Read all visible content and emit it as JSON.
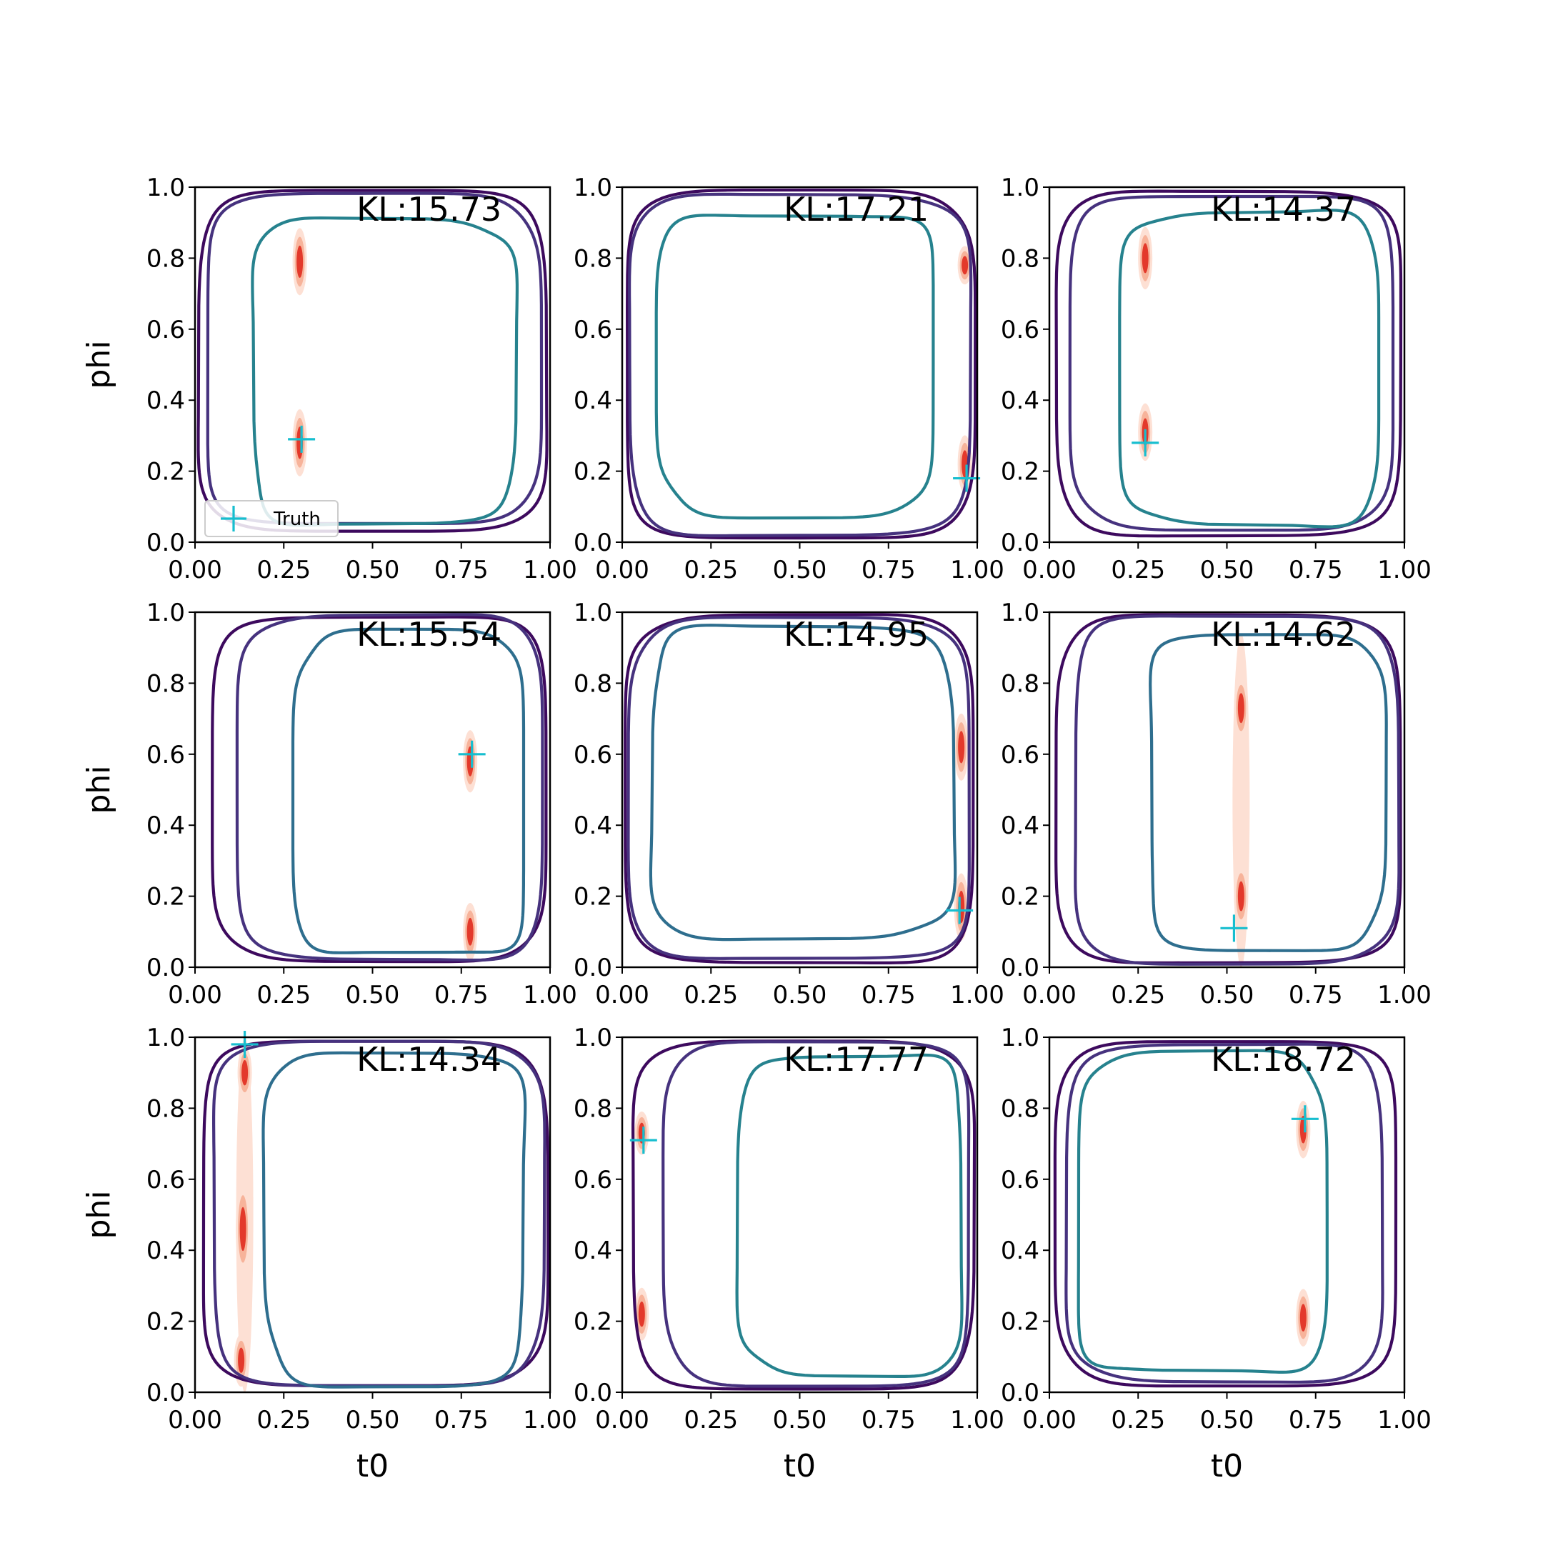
{
  "chart_data": {
    "type": "contour-grid",
    "rows": 3,
    "cols": 3,
    "xlabel": "t0",
    "ylabel": "phi",
    "xlim": [
      0,
      1
    ],
    "ylim": [
      0,
      1
    ],
    "xticks": [
      "0.00",
      "0.25",
      "0.50",
      "0.75",
      "1.00"
    ],
    "yticks": [
      "0.0",
      "0.2",
      "0.4",
      "0.6",
      "0.8",
      "1.0"
    ],
    "legend": {
      "label": "Truth",
      "placement": "lower-left",
      "panel": 0
    },
    "colors": {
      "truth": "#17becf",
      "density_dark": "#e3392b",
      "density_mid": "#f7b39a",
      "density_light": "#fde0d4",
      "contour_outer": "#3d0a5e",
      "contour_middle": "#46327e",
      "contour_inner_a": "#26828e",
      "contour_inner_b": "#2e6e8e"
    },
    "panels": [
      {
        "kl": "KL:15.73",
        "truth": [
          0.3,
          0.29
        ],
        "peaks": [
          [
            0.295,
            0.28,
            0.14
          ],
          [
            0.295,
            0.79,
            0.14
          ]
        ],
        "band": null,
        "outer": [
          0.01,
          0.03,
          0.99,
          0.99
        ],
        "middle": [
          0.03,
          0.05,
          0.97,
          0.98
        ],
        "inner": [
          0.16,
          0.05,
          0.9,
          0.91
        ],
        "inner_color": "contour_inner_a"
      },
      {
        "kl": "KL:17.21",
        "truth": [
          0.97,
          0.18
        ],
        "peaks": [
          [
            0.965,
            0.22,
            0.12
          ],
          [
            0.965,
            0.78,
            0.08
          ]
        ],
        "band": null,
        "outer": [
          0.01,
          0.01,
          0.99,
          0.99
        ],
        "middle": [
          0.02,
          0.02,
          0.98,
          0.98
        ],
        "inner": [
          0.1,
          0.08,
          0.88,
          0.93
        ],
        "inner_color": "contour_inner_a"
      },
      {
        "kl": "KL:14.37",
        "truth": [
          0.27,
          0.28
        ],
        "peaks": [
          [
            0.27,
            0.31,
            0.12
          ],
          [
            0.27,
            0.8,
            0.13
          ]
        ],
        "band": null,
        "outer": [
          0.02,
          0.02,
          0.99,
          0.99
        ],
        "middle": [
          0.06,
          0.04,
          0.97,
          0.98
        ],
        "inner": [
          0.2,
          0.05,
          0.93,
          0.93
        ],
        "inner_color": "contour_inner_a"
      },
      {
        "kl": "KL:15.54",
        "truth": [
          0.78,
          0.6
        ],
        "peaks": [
          [
            0.775,
            0.58,
            0.13
          ],
          [
            0.775,
            0.1,
            0.12
          ]
        ],
        "band": null,
        "outer": [
          0.05,
          0.02,
          0.99,
          0.99
        ],
        "middle": [
          0.12,
          0.02,
          0.98,
          0.99
        ],
        "inner": [
          0.28,
          0.03,
          0.93,
          0.94
        ],
        "inner_color": "contour_inner_b"
      },
      {
        "kl": "KL:14.95",
        "truth": [
          0.95,
          0.16
        ],
        "peaks": [
          [
            0.955,
            0.62,
            0.14
          ],
          [
            0.955,
            0.17,
            0.14
          ]
        ],
        "band": null,
        "outer": [
          0.01,
          0.01,
          0.99,
          0.99
        ],
        "middle": [
          0.02,
          0.02,
          0.98,
          0.98
        ],
        "inner": [
          0.08,
          0.08,
          0.93,
          0.96
        ],
        "inner_color": "contour_inner_b"
      },
      {
        "kl": "KL:14.62",
        "truth": [
          0.52,
          0.11
        ],
        "peaks": [
          [
            0.54,
            0.73,
            0.13
          ],
          [
            0.54,
            0.2,
            0.13
          ]
        ],
        "band": [
          0.54,
          0.0,
          0.94
        ],
        "outer": [
          0.02,
          0.01,
          0.99,
          0.99
        ],
        "middle": [
          0.07,
          0.01,
          0.98,
          0.99
        ],
        "inner": [
          0.28,
          0.05,
          0.94,
          0.94
        ],
        "inner_color": "contour_inner_b"
      },
      {
        "kl": "KL:14.34",
        "truth": [
          0.14,
          0.98
        ],
        "peaks": [
          [
            0.14,
            0.9,
            0.11
          ],
          [
            0.135,
            0.46,
            0.19
          ],
          [
            0.13,
            0.09,
            0.11
          ]
        ],
        "band": [
          0.14,
          0.0,
          1.0
        ],
        "outer": [
          0.02,
          0.02,
          0.99,
          0.99
        ],
        "middle": [
          0.05,
          0.02,
          0.98,
          0.99
        ],
        "inner": [
          0.2,
          0.02,
          0.93,
          0.96
        ],
        "inner_color": "contour_inner_b"
      },
      {
        "kl": "KL:17.77",
        "truth": [
          0.06,
          0.71
        ],
        "peaks": [
          [
            0.055,
            0.73,
            0.09
          ],
          [
            0.055,
            0.22,
            0.11
          ]
        ],
        "band": null,
        "outer": [
          0.03,
          0.01,
          0.99,
          0.99
        ],
        "middle": [
          0.12,
          0.02,
          0.98,
          0.99
        ],
        "inner": [
          0.33,
          0.05,
          0.96,
          0.95
        ],
        "inner_color": "contour_inner_a"
      },
      {
        "kl": "KL:18.72",
        "truth": [
          0.72,
          0.77
        ],
        "peaks": [
          [
            0.715,
            0.74,
            0.12
          ],
          [
            0.715,
            0.21,
            0.12
          ]
        ],
        "band": null,
        "outer": [
          0.02,
          0.02,
          0.98,
          0.99
        ],
        "middle": [
          0.05,
          0.03,
          0.94,
          0.98
        ],
        "inner": [
          0.08,
          0.05,
          0.78,
          0.95
        ],
        "inner_color": "contour_inner_a"
      }
    ]
  }
}
